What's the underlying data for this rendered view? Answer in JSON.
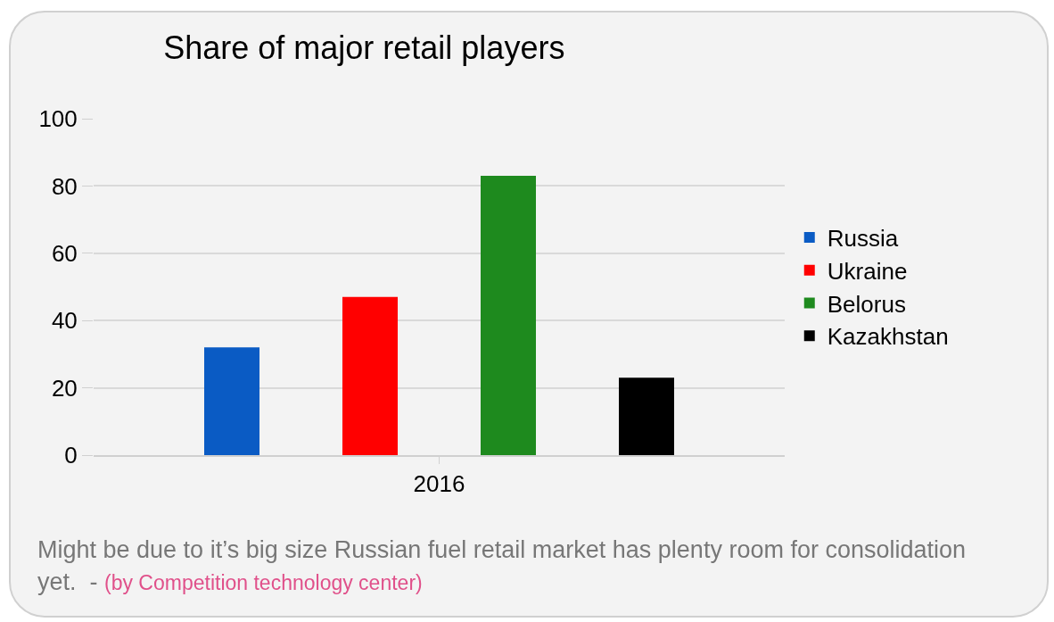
{
  "chart_data": {
    "type": "bar",
    "title": "Share of major retail players",
    "categories": [
      "2016"
    ],
    "series": [
      {
        "name": "Russia",
        "color": "#0a5bc4",
        "values": [
          32
        ]
      },
      {
        "name": "Ukraine",
        "color": "#ff0000",
        "values": [
          47
        ]
      },
      {
        "name": "Belorus",
        "color": "#1e8a1e",
        "values": [
          83
        ]
      },
      {
        "name": "Kazakhstan",
        "color": "#000000",
        "values": [
          23
        ]
      }
    ],
    "ylim": [
      0,
      100
    ],
    "yticks": [
      0,
      20,
      40,
      60,
      80,
      100
    ],
    "grid": "y",
    "legend": "right",
    "annotations": [
      "Might be due to it’s big size Russian fuel retail market has plenty room for consolidation yet.  - ",
      "(by Competition technology center)"
    ]
  }
}
